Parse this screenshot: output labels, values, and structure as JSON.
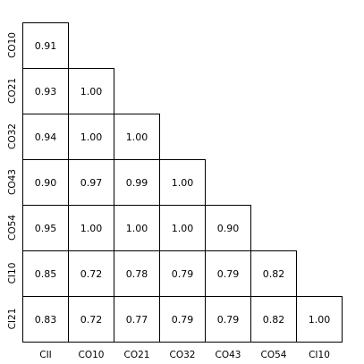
{
  "chart_data": {
    "type": "heatmap",
    "title": "",
    "xlabel": "",
    "ylabel": "",
    "x_labels": [
      "CII",
      "CO10",
      "CO21",
      "CO32",
      "CO43",
      "CO54",
      "CI10"
    ],
    "y_labels": [
      "CO10",
      "CO21",
      "CO32",
      "CO43",
      "CO54",
      "CI10",
      "CI21"
    ],
    "layout": "lower-triangle",
    "values": [
      [
        "0.91",
        null,
        null,
        null,
        null,
        null,
        null
      ],
      [
        "0.93",
        "1.00",
        null,
        null,
        null,
        null,
        null
      ],
      [
        "0.94",
        "1.00",
        "1.00",
        null,
        null,
        null,
        null
      ],
      [
        "0.90",
        "0.97",
        "0.99",
        "1.00",
        null,
        null,
        null
      ],
      [
        "0.95",
        "1.00",
        "1.00",
        "1.00",
        "0.90",
        null,
        null
      ],
      [
        "0.85",
        "0.72",
        "0.78",
        "0.79",
        "0.79",
        "0.82",
        null
      ],
      [
        "0.83",
        "0.72",
        "0.77",
        "0.79",
        "0.79",
        "0.82",
        "1.00"
      ]
    ],
    "grid": false,
    "colors": {
      "cell_fill": "#ffffff",
      "cell_border": "#000000",
      "text": "#000000"
    }
  }
}
